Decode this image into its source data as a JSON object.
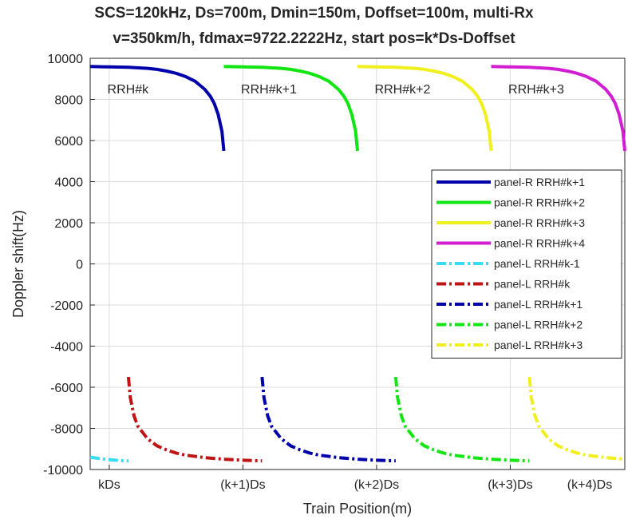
{
  "chart_data": {
    "type": "line",
    "title": "SCS=120kHz, Ds=700m, Dmin=150m, Doffset=100m, multi-Rx",
    "subtitle": "v=350km/h, fdmax=9722.2222Hz, start pos=k*Ds-Doffset",
    "xlabel": "Train Position(m)",
    "ylabel": "Doppler shift(Hz)",
    "xlim": [
      -100,
      2700
    ],
    "ylim": [
      -10000,
      10000
    ],
    "x_ticks": [
      {
        "value": 0,
        "label": "kDs"
      },
      {
        "value": 700,
        "label": "(k+1)Ds"
      },
      {
        "value": 1400,
        "label": "(k+2)Ds"
      },
      {
        "value": 2100,
        "label": "(k+3)Ds"
      },
      {
        "value": 2800,
        "label": "(k+4)Ds"
      }
    ],
    "y_ticks": [
      -10000,
      -8000,
      -6000,
      -4000,
      -2000,
      0,
      2000,
      4000,
      6000,
      8000,
      10000
    ],
    "grid": true,
    "legend_position": "right",
    "annotations": [
      {
        "text": "RRH#k",
        "x": -10,
        "y": 8300
      },
      {
        "text": "RRH#k+1",
        "x": 690,
        "y": 8300
      },
      {
        "text": "RRH#k+2",
        "x": 1390,
        "y": 8300
      },
      {
        "text": "RRH#k+3",
        "x": 2090,
        "y": 8300
      }
    ],
    "series": [
      {
        "name": "panel-R RRH#k+1",
        "color": "#0000ab",
        "style": "solid",
        "x": [
          -100,
          0,
          100,
          200,
          250,
          300,
          350,
          400,
          450,
          500,
          530,
          550,
          570,
          590,
          600
        ],
        "y": [
          9600,
          9580,
          9560,
          9510,
          9460,
          9380,
          9270,
          9110,
          8880,
          8490,
          8140,
          7800,
          7280,
          6460,
          5500
        ]
      },
      {
        "name": "panel-R RRH#k+2",
        "color": "#12e612",
        "style": "solid",
        "x": [
          600,
          700,
          800,
          900,
          950,
          1000,
          1050,
          1100,
          1150,
          1200,
          1230,
          1250,
          1270,
          1290,
          1300
        ],
        "y": [
          9600,
          9580,
          9560,
          9510,
          9460,
          9380,
          9270,
          9110,
          8880,
          8490,
          8140,
          7800,
          7280,
          6460,
          5500
        ]
      },
      {
        "name": "panel-R RRH#k+3",
        "color": "#f0f01e",
        "style": "solid",
        "x": [
          1300,
          1400,
          1500,
          1600,
          1650,
          1700,
          1750,
          1800,
          1850,
          1900,
          1930,
          1950,
          1970,
          1990,
          2000
        ],
        "y": [
          9600,
          9580,
          9560,
          9510,
          9460,
          9380,
          9270,
          9110,
          8880,
          8490,
          8140,
          7800,
          7280,
          6460,
          5500
        ]
      },
      {
        "name": "panel-R RRH#k+4",
        "color": "#d21ed2",
        "style": "solid",
        "x": [
          2000,
          2100,
          2200,
          2300,
          2350,
          2400,
          2450,
          2500,
          2550,
          2600,
          2630,
          2650,
          2670,
          2690,
          2700
        ],
        "y": [
          9600,
          9580,
          9560,
          9510,
          9460,
          9380,
          9270,
          9110,
          8880,
          8490,
          8140,
          7800,
          7280,
          6460,
          5500
        ]
      },
      {
        "name": "panel-L RRH#k-1",
        "color": "#37dcf0",
        "style": "dashdot",
        "x": [
          -100,
          -50,
          0,
          50,
          100
        ],
        "y": [
          -9400,
          -9470,
          -9520,
          -9560,
          -9580
        ]
      },
      {
        "name": "panel-L RRH#k",
        "color": "#c01414",
        "style": "dashdot",
        "x": [
          100,
          110,
          130,
          150,
          200,
          250,
          300,
          350,
          400,
          500,
          600,
          700,
          800
        ],
        "y": [
          -5500,
          -6500,
          -7400,
          -7900,
          -8500,
          -8850,
          -9050,
          -9200,
          -9300,
          -9420,
          -9500,
          -9550,
          -9580
        ]
      },
      {
        "name": "panel-L RRH#k+1",
        "color": "#0000ab",
        "style": "dashdot",
        "x": [
          800,
          810,
          830,
          850,
          900,
          950,
          1000,
          1050,
          1100,
          1200,
          1300,
          1400,
          1500
        ],
        "y": [
          -5500,
          -6500,
          -7400,
          -7900,
          -8500,
          -8850,
          -9050,
          -9200,
          -9300,
          -9420,
          -9500,
          -9550,
          -9580
        ]
      },
      {
        "name": "panel-L RRH#k+2",
        "color": "#12e612",
        "style": "dashdot",
        "x": [
          1500,
          1510,
          1530,
          1550,
          1600,
          1650,
          1700,
          1750,
          1800,
          1900,
          2000,
          2100,
          2200
        ],
        "y": [
          -5500,
          -6500,
          -7400,
          -7900,
          -8500,
          -8850,
          -9050,
          -9200,
          -9300,
          -9420,
          -9500,
          -9550,
          -9580
        ]
      },
      {
        "name": "panel-L RRH#k+3",
        "color": "#f0f01e",
        "style": "dashdot",
        "x": [
          2200,
          2210,
          2230,
          2250,
          2300,
          2350,
          2400,
          2450,
          2500,
          2600,
          2700
        ],
        "y": [
          -5500,
          -6500,
          -7400,
          -7900,
          -8500,
          -8850,
          -9050,
          -9200,
          -9300,
          -9420,
          -9500
        ]
      }
    ]
  }
}
